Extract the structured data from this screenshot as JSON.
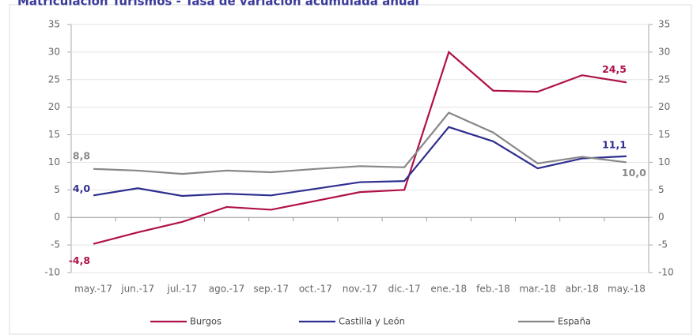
{
  "chart_data": {
    "type": "line",
    "title": "Matriculación Turismos - Tasa de variación acumulada anual",
    "categories": [
      "may.-17",
      "jun.-17",
      "jul.-17",
      "ago.-17",
      "sep.-17",
      "oct.-17",
      "nov.-17",
      "dic.-17",
      "ene.-18",
      "feb.-18",
      "mar.-18",
      "abr.-18",
      "may.-18"
    ],
    "series": [
      {
        "name": "Burgos",
        "color": "#b0104a",
        "values": [
          -4.8,
          -2.7,
          -0.8,
          1.9,
          1.4,
          3.0,
          4.6,
          5.0,
          30.0,
          23.0,
          22.8,
          25.8,
          24.5
        ],
        "value_labels": [
          "-4,8",
          null,
          null,
          null,
          null,
          null,
          null,
          null,
          null,
          null,
          null,
          null,
          "24,5"
        ]
      },
      {
        "name": "Castilla y León",
        "color": "#2e2e8f",
        "values": [
          4.0,
          5.3,
          3.9,
          4.3,
          4.0,
          5.2,
          6.4,
          6.6,
          16.4,
          13.8,
          8.9,
          10.7,
          11.1
        ],
        "value_labels": [
          "4,0",
          null,
          null,
          null,
          null,
          null,
          null,
          null,
          null,
          null,
          null,
          null,
          "11,1"
        ]
      },
      {
        "name": "España",
        "color": "#888888",
        "values": [
          8.8,
          8.5,
          7.9,
          8.5,
          8.2,
          8.8,
          9.3,
          9.1,
          19.0,
          15.4,
          9.8,
          11.0,
          10.0
        ],
        "value_labels": [
          "8,8",
          null,
          null,
          null,
          null,
          null,
          null,
          null,
          null,
          null,
          null,
          null,
          "10,0"
        ]
      }
    ],
    "ylim": [
      -10,
      35
    ],
    "yticks": [
      -10,
      -5,
      0,
      5,
      10,
      15,
      20,
      25,
      30,
      35
    ],
    "y2lim": [
      -10,
      35
    ],
    "y2ticks": [
      -10,
      -5,
      0,
      5,
      10,
      15,
      20,
      25,
      30,
      35
    ],
    "grid": true,
    "legend": "bottom"
  }
}
